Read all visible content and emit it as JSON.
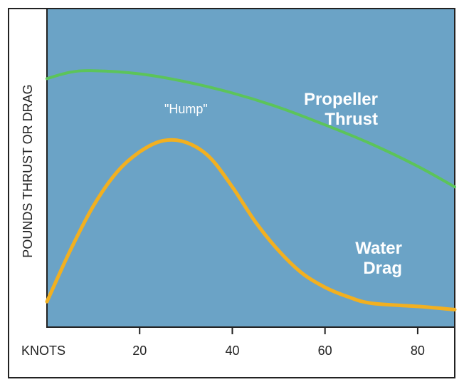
{
  "chart_data": {
    "type": "line",
    "title": "",
    "xlabel": "KNOTS",
    "ylabel": "POUNDS THRUST OR DRAG",
    "xlim": [
      0,
      88
    ],
    "ylim": [
      0,
      100
    ],
    "xticks": [
      20,
      40,
      60,
      80
    ],
    "xtick_labels": [
      "20",
      "40",
      "60",
      "80"
    ],
    "grid": false,
    "plot_background": "#6ba3c6",
    "series": [
      {
        "name_lines": [
          "Propeller",
          "Thrust"
        ],
        "color": "#5cc45a",
        "x": [
          0,
          5,
          10,
          20,
          30,
          40,
          50,
          60,
          70,
          80,
          88
        ],
        "y": [
          78,
          80,
          80.5,
          79.5,
          77,
          73.5,
          69,
          63.5,
          57.5,
          50.5,
          44
        ]
      },
      {
        "name_lines": [
          "Water",
          "Drag"
        ],
        "color": "#f2b020",
        "x": [
          0,
          5,
          10,
          15,
          20,
          25,
          30,
          35,
          40,
          45,
          50,
          55,
          60,
          65,
          70,
          80,
          88
        ],
        "y": [
          8,
          24,
          38,
          48.5,
          55,
          58.5,
          58,
          53.5,
          44,
          33,
          24,
          17,
          12.5,
          9.5,
          7.5,
          6.5,
          5.5
        ]
      }
    ],
    "annotations": [
      {
        "text": "\"Hump\"",
        "x": 30,
        "y": 63.5
      }
    ]
  }
}
